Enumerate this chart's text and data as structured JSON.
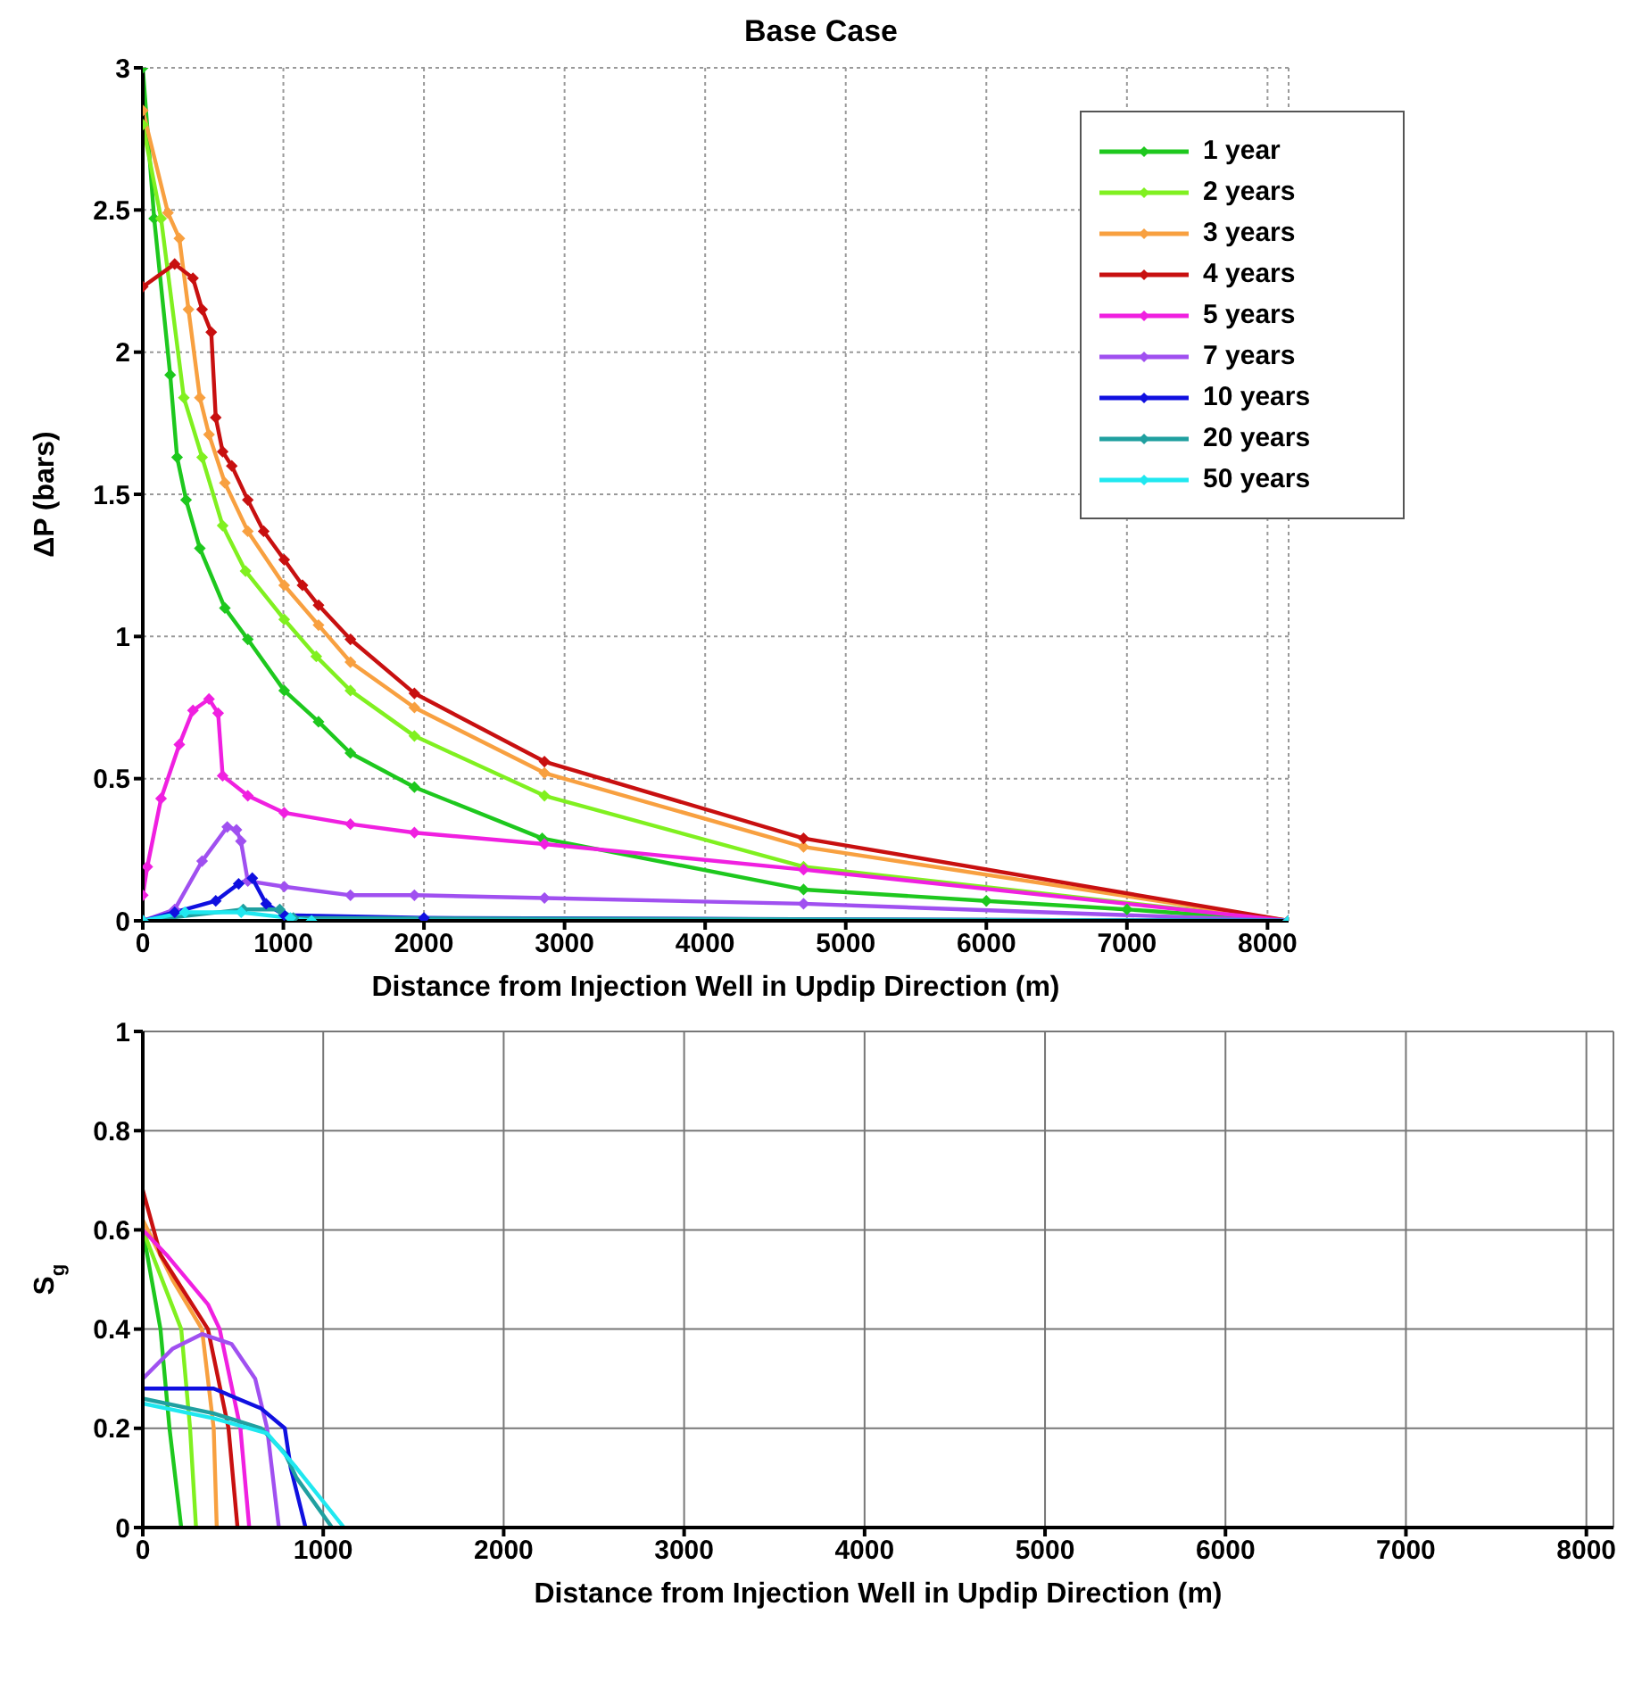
{
  "chart_data": [
    {
      "type": "line",
      "title": "Base Case",
      "xlabel": "Distance from Injection Well in Updip Direction (m)",
      "ylabel": "ΔP (bars)",
      "xlim": [
        0,
        8150
      ],
      "ylim": [
        0,
        3
      ],
      "xticks": [
        0,
        1000,
        2000,
        3000,
        4000,
        5000,
        6000,
        7000,
        8000
      ],
      "yticks": [
        0,
        0.5,
        1,
        1.5,
        2,
        2.5,
        3
      ],
      "grid": true,
      "legend": "top right",
      "marker": "diamond",
      "series": [
        {
          "name": "1 year",
          "color": "#1ec81e",
          "x": [
            0,
            81,
            195,
            244,
            308,
            406,
            584,
            747,
            1006,
            1250,
            1477,
            1932,
            2841,
            4700,
            6000,
            7000,
            8150
          ],
          "values": [
            3,
            2.47,
            1.92,
            1.63,
            1.48,
            1.31,
            1.1,
            0.99,
            0.81,
            0.7,
            0.59,
            0.47,
            0.29,
            0.11,
            0.07,
            0.04,
            0
          ]
        },
        {
          "name": "2 years",
          "color": "#80f020",
          "x": [
            0,
            130,
            292,
            422,
            568,
            731,
            1006,
            1234,
            1477,
            1932,
            2857,
            4700,
            8150
          ],
          "values": [
            2.8,
            2.47,
            1.84,
            1.63,
            1.39,
            1.23,
            1.06,
            0.93,
            0.81,
            0.65,
            0.44,
            0.19,
            0
          ]
        },
        {
          "name": "3 years",
          "color": "#f8a040",
          "x": [
            0,
            179,
            260,
            325,
            406,
            471,
            584,
            747,
            1006,
            1250,
            1477,
            1932,
            2857,
            4700,
            8150
          ],
          "values": [
            2.85,
            2.49,
            2.4,
            2.15,
            1.84,
            1.71,
            1.54,
            1.37,
            1.18,
            1.04,
            0.91,
            0.75,
            0.52,
            0.26,
            0
          ]
        },
        {
          "name": "4 years",
          "color": "#c81010",
          "x": [
            0,
            227,
            357,
            422,
            487,
            519,
            568,
            633,
            747,
            860,
            1006,
            1136,
            1250,
            1477,
            1932,
            2857,
            4700,
            8150
          ],
          "values": [
            2.23,
            2.31,
            2.26,
            2.15,
            2.07,
            1.77,
            1.65,
            1.6,
            1.48,
            1.37,
            1.27,
            1.18,
            1.11,
            0.99,
            0.8,
            0.56,
            0.29,
            0
          ]
        },
        {
          "name": "5 years",
          "color": "#f020e0",
          "x": [
            0,
            32,
            130,
            260,
            357,
            471,
            536,
            568,
            747,
            1006,
            1477,
            1932,
            2857,
            4700,
            8150
          ],
          "values": [
            0.09,
            0.19,
            0.43,
            0.62,
            0.74,
            0.78,
            0.73,
            0.51,
            0.44,
            0.38,
            0.34,
            0.31,
            0.27,
            0.18,
            0
          ]
        },
        {
          "name": "7 years",
          "color": "#a050f0",
          "x": [
            0,
            227,
            422,
            601,
            666,
            698,
            747,
            1006,
            1477,
            1932,
            2857,
            4700,
            8150
          ],
          "values": [
            0,
            0.04,
            0.21,
            0.33,
            0.32,
            0.28,
            0.14,
            0.12,
            0.09,
            0.09,
            0.08,
            0.06,
            0
          ]
        },
        {
          "name": "10 years",
          "color": "#1010e0",
          "x": [
            0,
            227,
            519,
            682,
            779,
            877,
            1006,
            2000,
            8150
          ],
          "values": [
            0,
            0.03,
            0.07,
            0.13,
            0.15,
            0.06,
            0.02,
            0.01,
            0
          ]
        },
        {
          "name": "20 years",
          "color": "#20a0a0",
          "x": [
            0,
            714,
            974,
            1071,
            8150
          ],
          "values": [
            0,
            0.04,
            0.04,
            0.01,
            0
          ]
        },
        {
          "name": "50 years",
          "color": "#20e8f0",
          "x": [
            0,
            300,
            700,
            1050,
            1200,
            8150
          ],
          "values": [
            0,
            0.03,
            0.03,
            0.01,
            0,
            0
          ]
        }
      ]
    },
    {
      "type": "line",
      "xlabel": "Distance from Injection Well in Updip Direction (m)",
      "ylabel": "S$_{g}$",
      "xlim": [
        0,
        8150
      ],
      "ylim": [
        0,
        1
      ],
      "xticks": [
        0,
        1000,
        2000,
        3000,
        4000,
        5000,
        6000,
        7000,
        8000
      ],
      "yticks": [
        0,
        0.2,
        0.4,
        0.6,
        0.8,
        1
      ],
      "grid": true,
      "series": [
        {
          "color": "#1ec81e",
          "x": [
            0,
            98,
            148,
            213
          ],
          "values": [
            0.6,
            0.4,
            0.2,
            0
          ]
        },
        {
          "color": "#80f020",
          "x": [
            0,
            213,
            262,
            295
          ],
          "values": [
            0.6,
            0.4,
            0.2,
            0
          ]
        },
        {
          "color": "#f8a040",
          "x": [
            0,
            164,
            328,
            393,
            410
          ],
          "values": [
            0.62,
            0.5,
            0.4,
            0.2,
            0
          ]
        },
        {
          "color": "#c81010",
          "x": [
            0,
            98,
            361,
            475,
            525
          ],
          "values": [
            0.68,
            0.55,
            0.4,
            0.2,
            0
          ]
        },
        {
          "color": "#f020e0",
          "x": [
            0,
            131,
            361,
            426,
            541,
            590
          ],
          "values": [
            0.6,
            0.55,
            0.45,
            0.4,
            0.2,
            0
          ]
        },
        {
          "color": "#a050f0",
          "x": [
            0,
            164,
            328,
            492,
            623,
            689,
            754
          ],
          "values": [
            0.3,
            0.36,
            0.39,
            0.37,
            0.3,
            0.2,
            0
          ]
        },
        {
          "color": "#1010e0",
          "x": [
            0,
            393,
            525,
            656,
            787,
            820,
            902
          ],
          "values": [
            0.28,
            0.28,
            0.26,
            0.24,
            0.2,
            0.12,
            0
          ]
        },
        {
          "color": "#20a0a0",
          "x": [
            0,
            393,
            656,
            787,
            852,
            1049
          ],
          "values": [
            0.26,
            0.23,
            0.2,
            0.15,
            0.1,
            0
          ]
        },
        {
          "color": "#20e8f0",
          "x": [
            0,
            393,
            689,
            852,
            1115
          ],
          "values": [
            0.25,
            0.22,
            0.19,
            0.12,
            0
          ]
        }
      ]
    }
  ]
}
